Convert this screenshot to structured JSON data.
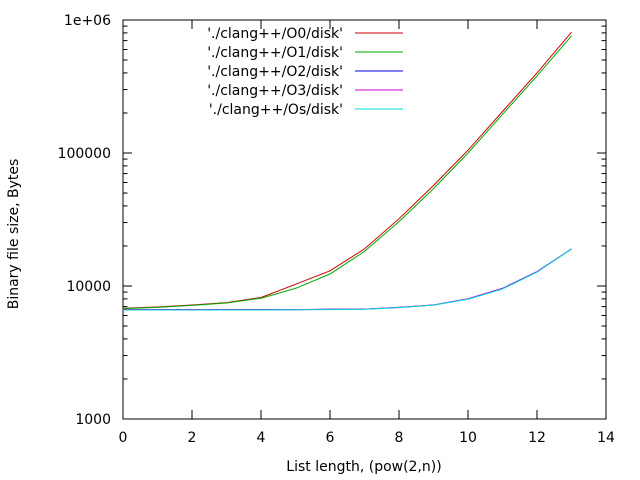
{
  "chart_data": {
    "type": "line",
    "title": "",
    "xlabel": "List length, (pow(2,n))",
    "ylabel": "Binary file size, Bytes",
    "xlim": [
      0,
      14
    ],
    "ylim": [
      1000,
      1000000
    ],
    "yscale": "log",
    "grid": false,
    "legend_position": "top-left",
    "xticks": [
      0,
      2,
      4,
      6,
      8,
      10,
      12,
      14
    ],
    "xtick_labels": [
      "0",
      "2",
      "4",
      "6",
      "8",
      "10",
      "12",
      "14"
    ],
    "yticks": [
      1000,
      10000,
      100000,
      1000000
    ],
    "ytick_labels": [
      "1000",
      "10000",
      "100000",
      "1e+06"
    ],
    "series": [
      {
        "name": "'./clang++/O0/disk'",
        "color": "#cc0000",
        "x": [
          0,
          1,
          2,
          3,
          4,
          5,
          6,
          7,
          8,
          9,
          10,
          11,
          12,
          13
        ],
        "y": [
          6800,
          6950,
          7200,
          7500,
          8200,
          10300,
          13000,
          19000,
          32000,
          57000,
          105000,
          205000,
          400000,
          810000
        ]
      },
      {
        "name": "'./clang++/O1/disk'",
        "color": "#00aa00",
        "x": [
          0,
          1,
          2,
          3,
          4,
          5,
          6,
          7,
          8,
          9,
          10,
          11,
          12,
          13
        ],
        "y": [
          6750,
          6900,
          7150,
          7450,
          8100,
          9600,
          12300,
          18200,
          30500,
          54000,
          100000,
          195000,
          380000,
          760000
        ]
      },
      {
        "name": "'./clang++/O2/disk'",
        "color": "#0000ee",
        "x": [
          0,
          1,
          2,
          3,
          4,
          5,
          6,
          7,
          8,
          9,
          10,
          11,
          12,
          13
        ],
        "y": [
          6650,
          6650,
          6650,
          6650,
          6650,
          6650,
          6680,
          6700,
          6900,
          7200,
          8000,
          9600,
          12800,
          19000
        ]
      },
      {
        "name": "'./clang++/O3/disk'",
        "color": "#cc00cc",
        "x": [
          0,
          1,
          2,
          3,
          4,
          5,
          6,
          7,
          8,
          9,
          10,
          11,
          12,
          13
        ],
        "y": [
          6650,
          6650,
          6650,
          6650,
          6650,
          6650,
          6680,
          6700,
          6900,
          7200,
          8000,
          9600,
          12800,
          19000
        ]
      },
      {
        "name": "'./clang++/Os/disk'",
        "color": "#00dddd",
        "x": [
          0,
          1,
          2,
          3,
          4,
          5,
          6,
          7,
          8,
          9,
          10,
          11,
          12,
          13
        ],
        "y": [
          6600,
          6600,
          6600,
          6600,
          6600,
          6620,
          6650,
          6680,
          6880,
          7180,
          7950,
          9500,
          12700,
          19000
        ]
      }
    ]
  }
}
